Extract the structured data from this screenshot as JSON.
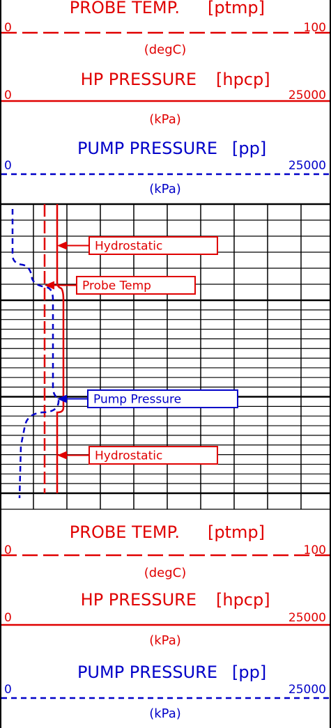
{
  "header_top": {
    "tracks": [
      {
        "title": "PROBE TEMP.",
        "mnemonic": "[ptmp]",
        "min": 0,
        "max": 100,
        "unit": "(degC)",
        "color": "#e00000",
        "dashed": true
      },
      {
        "title": "HP PRESSURE",
        "mnemonic": "[hpcp]",
        "min": 0,
        "max": 25000,
        "unit": "(kPa)",
        "color": "#e00000",
        "dashed": false
      },
      {
        "title": "PUMP PRESSURE",
        "mnemonic": "[pp]",
        "min": 0,
        "max": 25000,
        "unit": "(kPa)",
        "color": "#0000c8",
        "dashed": true
      }
    ]
  },
  "callouts": [
    {
      "label": "Hydrostatic",
      "color": "#e00000"
    },
    {
      "label": "Probe Temp",
      "color": "#e00000"
    },
    {
      "label": "Pump Pressure",
      "color": "#0000c8"
    },
    {
      "label": "Hydrostatic",
      "color": "#e00000"
    }
  ],
  "header_bottom": {
    "tracks": [
      {
        "title": "PROBE TEMP.",
        "mnemonic": "[ptmp]",
        "min": 0,
        "max": 100,
        "unit": "(degC)",
        "color": "#e00000",
        "dashed": true
      },
      {
        "title": "HP PRESSURE",
        "mnemonic": "[hpcp]",
        "min": 0,
        "max": 25000,
        "unit": "(kPa)",
        "color": "#e00000",
        "dashed": false
      },
      {
        "title": "PUMP PRESSURE",
        "mnemonic": "[pp]",
        "min": 0,
        "max": 25000,
        "unit": "(kPa)",
        "color": "#0000c8",
        "dashed": true
      }
    ]
  }
}
